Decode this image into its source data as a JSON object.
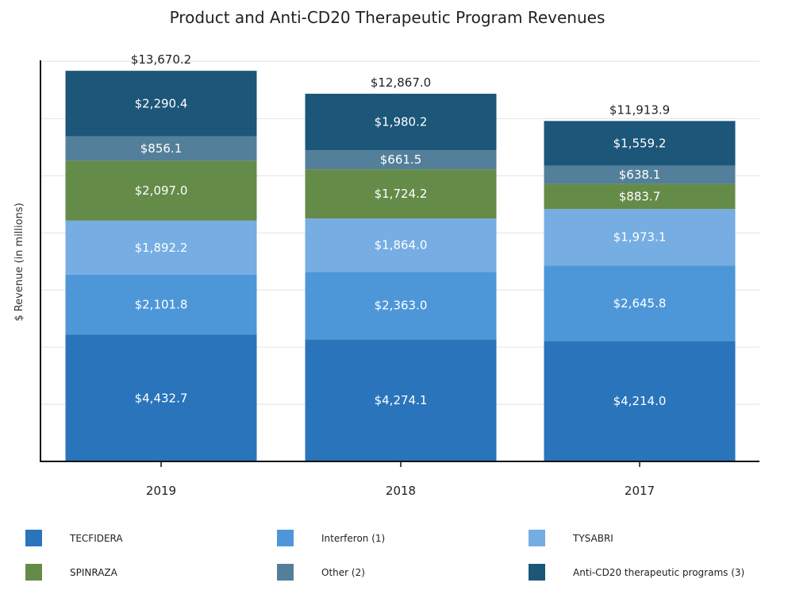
{
  "chart_data": {
    "type": "bar",
    "stacked": true,
    "title": "Product and Anti-CD20 Therapeutic Program Revenues",
    "xlabel": "",
    "ylabel": "$ Revenue (in millions)",
    "ylim": [
      0,
      14000
    ],
    "grid": true,
    "legend_position": "bottom",
    "categories": [
      "2019",
      "2018",
      "2017"
    ],
    "totals": [
      13670.2,
      12867.0,
      11913.9
    ],
    "total_labels": [
      "$13,670.2",
      "$12,867.0",
      "$11,913.9"
    ],
    "series": [
      {
        "name": "TECFIDERA",
        "color": "#2a74bb",
        "values": [
          4432.7,
          4274.1,
          4214.0
        ],
        "labels": [
          "$4,432.7",
          "$4,274.1",
          "$4,214.0"
        ]
      },
      {
        "name": "Interferon (1)",
        "color": "#4d97d9",
        "values": [
          2101.8,
          2363.0,
          2645.8
        ],
        "labels": [
          "$2,101.8",
          "$2,363.0",
          "$2,645.8"
        ]
      },
      {
        "name": "TYSABRI",
        "color": "#76ade3",
        "values": [
          1892.2,
          1864.0,
          1973.1
        ],
        "labels": [
          "$1,892.2",
          "$1,864.0",
          "$1,973.1"
        ]
      },
      {
        "name": "SPINRAZA",
        "color": "#648b48",
        "values": [
          2097.0,
          1724.2,
          883.7
        ],
        "labels": [
          "$2,097.0",
          "$1,724.2",
          "$883.7"
        ]
      },
      {
        "name": "Other (2)",
        "color": "#537f9a",
        "values": [
          856.1,
          661.5,
          638.1
        ],
        "labels": [
          "$856.1",
          "$661.5",
          "$638.1"
        ]
      },
      {
        "name": "Anti-CD20 therapeutic programs (3)",
        "color": "#1c5678",
        "values": [
          2290.4,
          1980.2,
          1559.2
        ],
        "labels": [
          "$2,290.4",
          "$1,980.2",
          "$1,559.2"
        ]
      }
    ]
  }
}
